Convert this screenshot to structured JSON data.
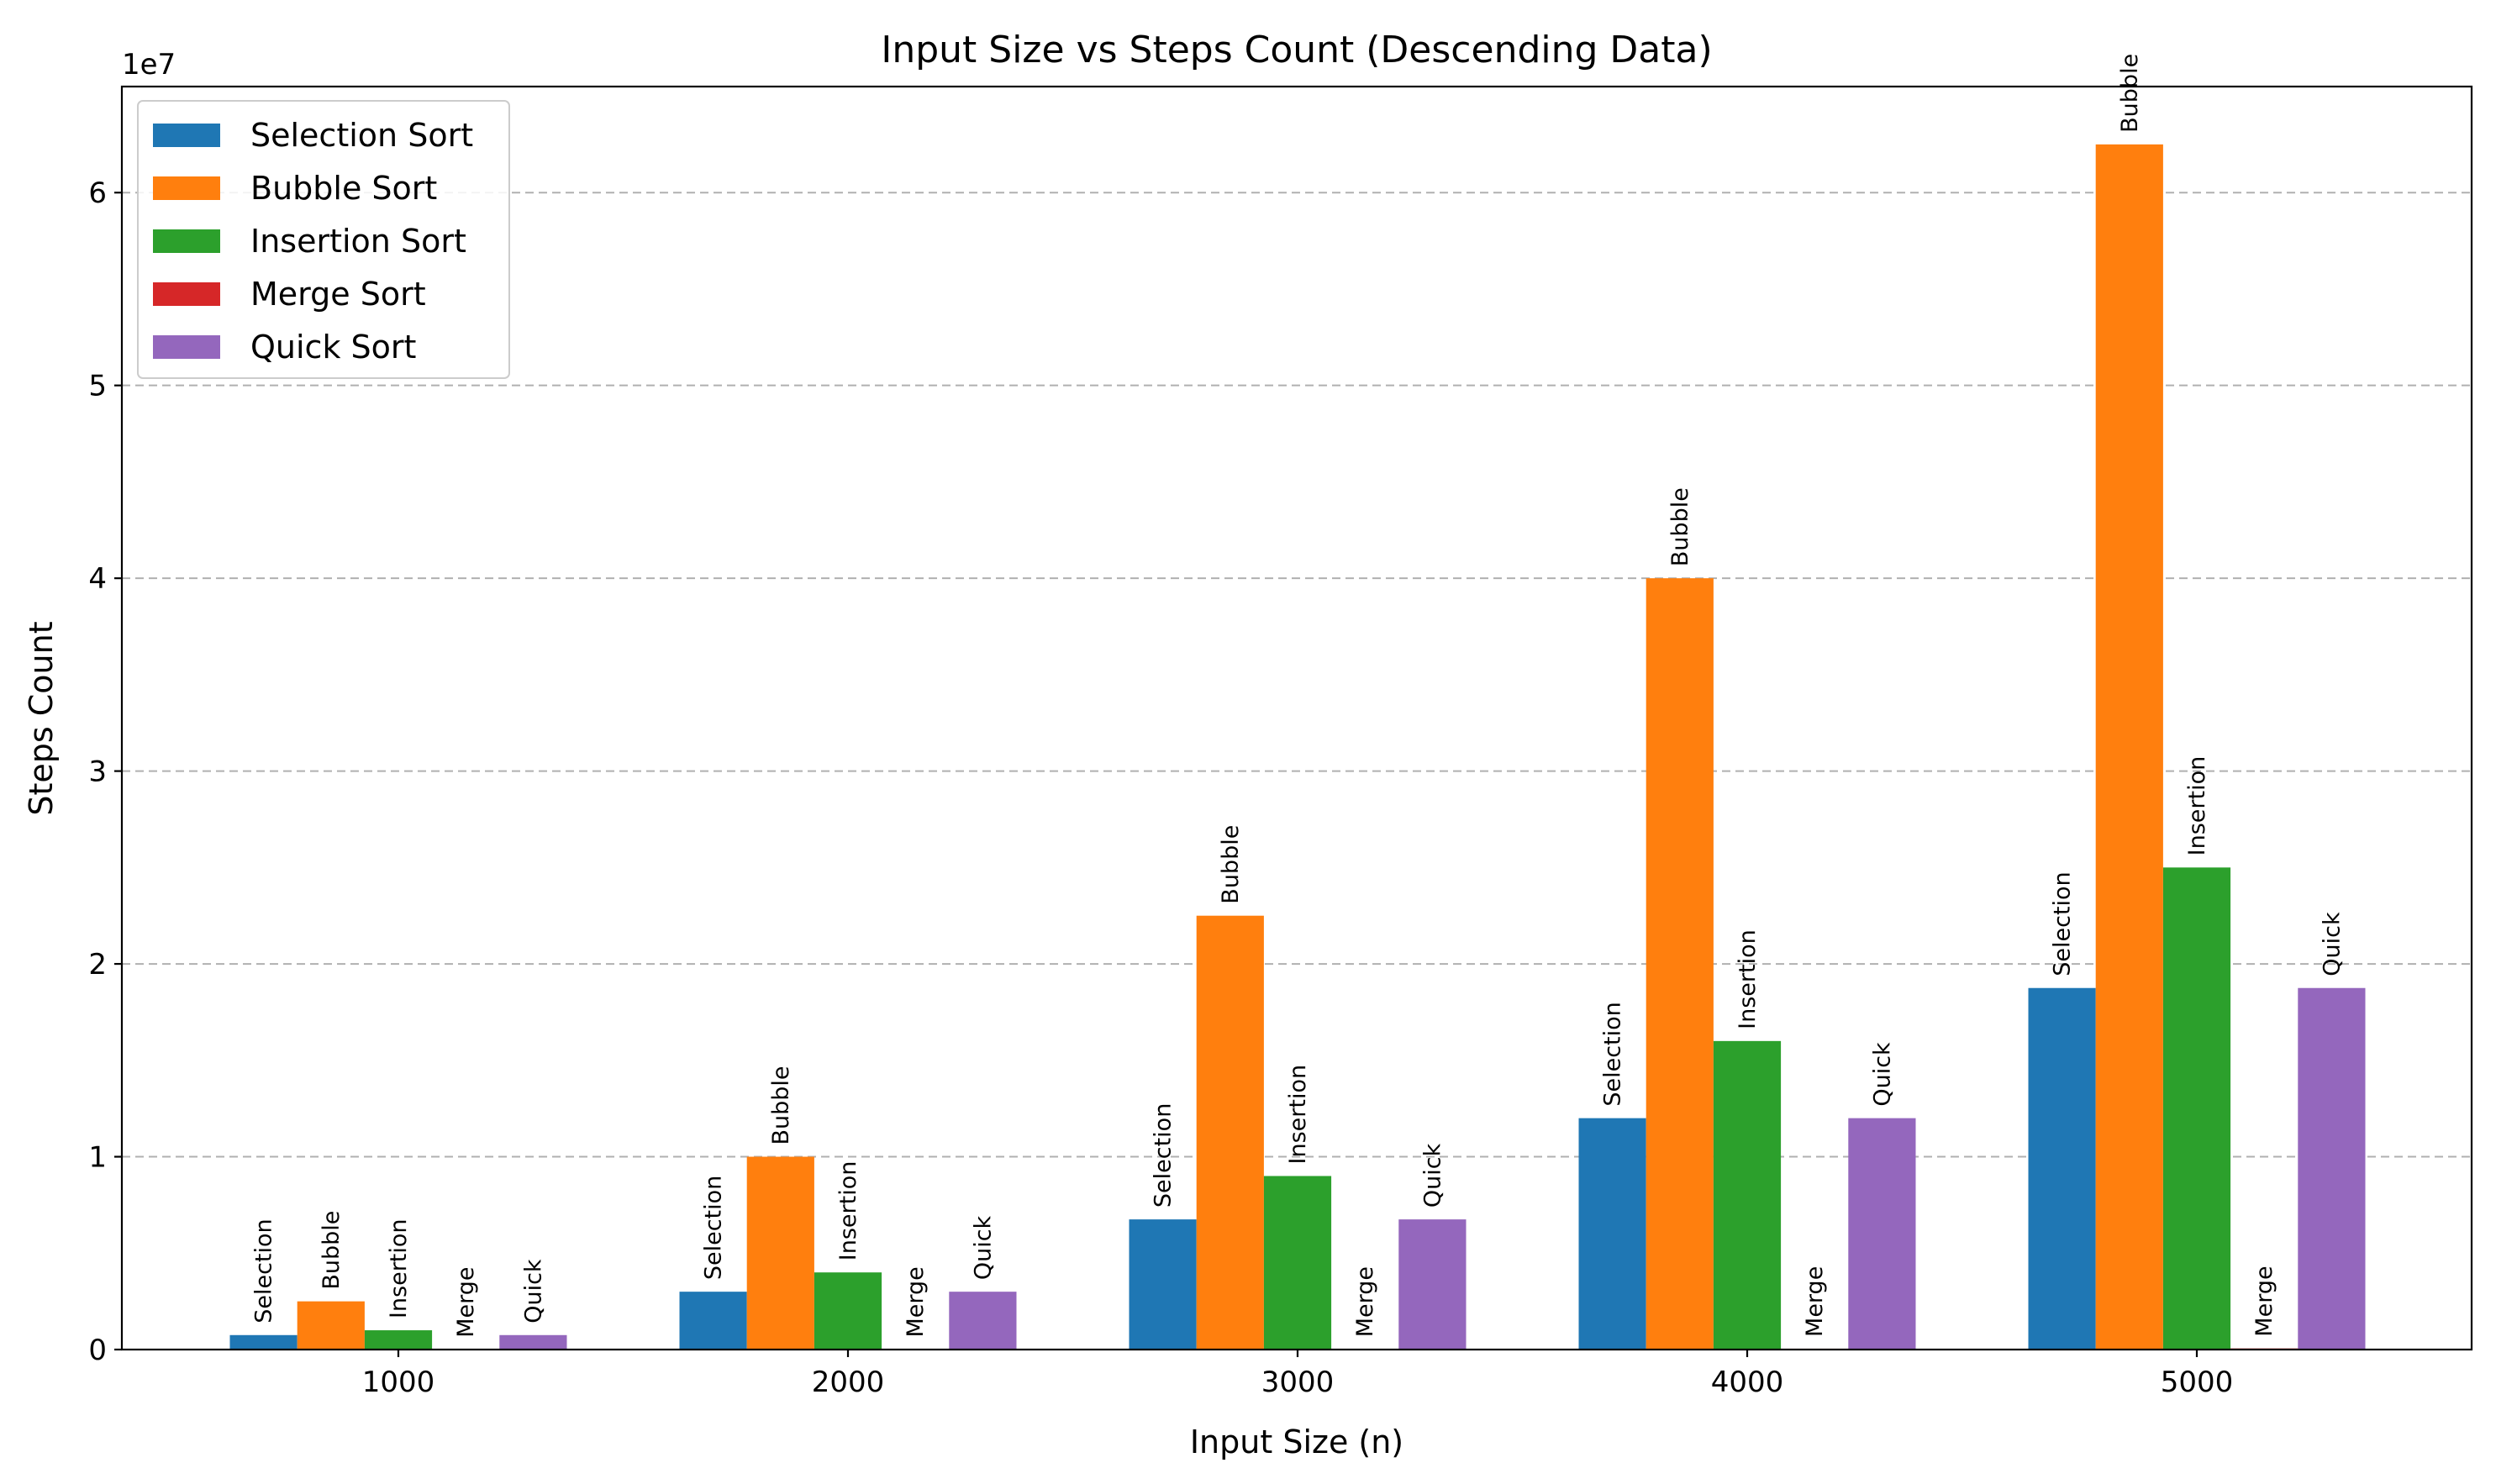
{
  "chart_data": {
    "type": "bar",
    "title": "Input Size vs Steps Count (Descending Data)",
    "xlabel": "Input Size (n)",
    "ylabel": "Steps Count",
    "y_offset_label": "1e7",
    "categories": [
      "1000",
      "2000",
      "3000",
      "4000",
      "5000"
    ],
    "yticks": [
      "0",
      "1",
      "2",
      "3",
      "4",
      "5",
      "6"
    ],
    "ylim": [
      0,
      65500000
    ],
    "grid": "y-dashed",
    "legend_position": "top-left",
    "series": [
      {
        "name": "Selection Sort",
        "bar_label": "Selection",
        "color": "#1f77b4",
        "values": [
          750000,
          3000000,
          6750000,
          12000000,
          18750000
        ]
      },
      {
        "name": "Bubble Sort",
        "bar_label": "Bubble",
        "color": "#ff7f0e",
        "values": [
          2500000,
          10000000,
          22500000,
          40000000,
          62500000
        ]
      },
      {
        "name": "Insertion Sort",
        "bar_label": "Insertion",
        "color": "#2ca02c",
        "values": [
          1000000,
          4000000,
          9000000,
          16000000,
          25000000
        ]
      },
      {
        "name": "Merge Sort",
        "bar_label": "Merge",
        "color": "#d62728",
        "values": [
          10000,
          21000,
          33000,
          45000,
          57000
        ]
      },
      {
        "name": "Quick Sort",
        "bar_label": "Quick",
        "color": "#9467bd",
        "values": [
          750000,
          3000000,
          6750000,
          12000000,
          18750000
        ]
      }
    ]
  }
}
